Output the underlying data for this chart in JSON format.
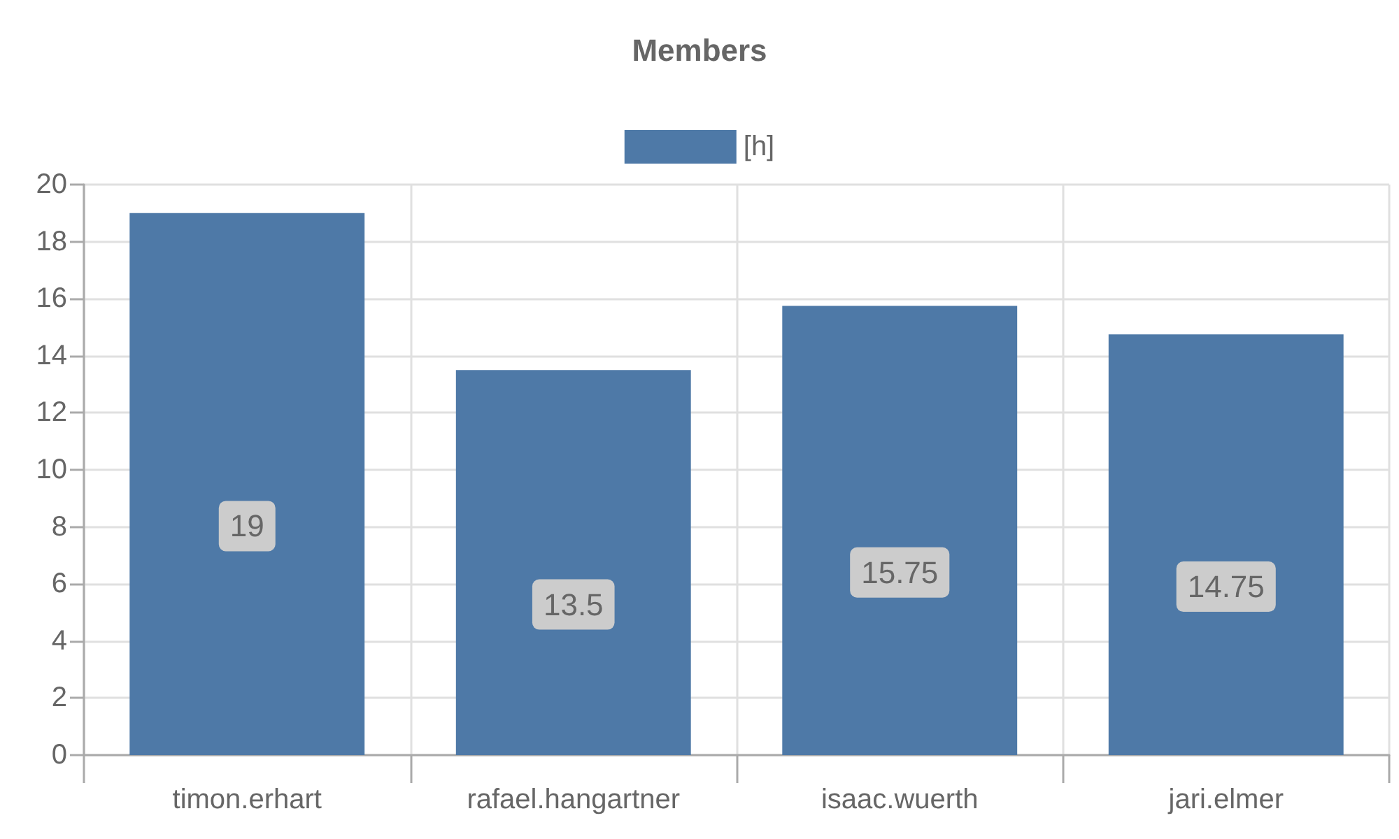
{
  "chart_data": {
    "type": "bar",
    "title": "Members",
    "categories": [
      "timon.erhart",
      "rafael.hangartner",
      "isaac.wuerth",
      "jari.elmer"
    ],
    "series": [
      {
        "name": "[h]",
        "color": "#4e79a7",
        "values": [
          19,
          13.5,
          15.75,
          14.75
        ]
      }
    ],
    "ylim": [
      0,
      20
    ],
    "yticks": [
      0,
      2,
      4,
      6,
      8,
      10,
      12,
      14,
      16,
      18,
      20
    ],
    "grid": true,
    "legend": "top",
    "data_labels": true
  }
}
